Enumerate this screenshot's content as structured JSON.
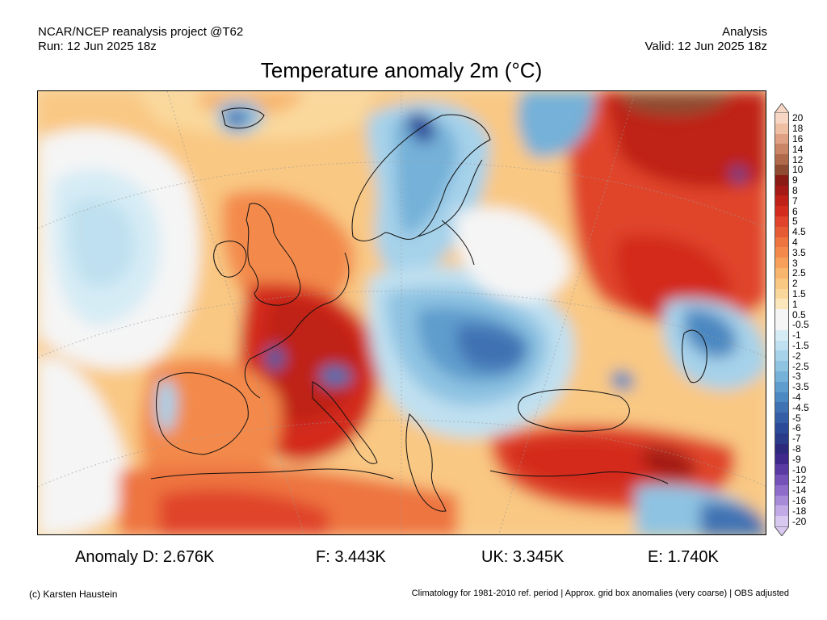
{
  "header": {
    "project": "NCAR/NCEP reanalysis project @T62",
    "run": "Run: 12 Jun 2025 18z",
    "mode": "Analysis",
    "valid": "Valid: 12 Jun 2025 18z"
  },
  "title": "Temperature anomaly 2m (°C)",
  "legend": {
    "levels": [
      {
        "label": "20",
        "color": "#f7d7c4"
      },
      {
        "label": "18",
        "color": "#efbfa3"
      },
      {
        "label": "16",
        "color": "#dfa083"
      },
      {
        "label": "14",
        "color": "#c98565"
      },
      {
        "label": "12",
        "color": "#b06a4b"
      },
      {
        "label": "10",
        "color": "#8e4b32"
      },
      {
        "label": "9",
        "color": "#8a1a14"
      },
      {
        "label": "8",
        "color": "#a51a16"
      },
      {
        "label": "7",
        "color": "#bf2118"
      },
      {
        "label": "6",
        "color": "#d32b1e"
      },
      {
        "label": "5",
        "color": "#e0442a"
      },
      {
        "label": "4.5",
        "color": "#e75b34"
      },
      {
        "label": "4",
        "color": "#ee7440"
      },
      {
        "label": "3.5",
        "color": "#f38a4c"
      },
      {
        "label": "3",
        "color": "#f6a05c"
      },
      {
        "label": "2.5",
        "color": "#f8b56d"
      },
      {
        "label": "2",
        "color": "#f9c883"
      },
      {
        "label": "1.5",
        "color": "#fad89c"
      },
      {
        "label": "1",
        "color": "#fbe7bb"
      },
      {
        "label": "0.5",
        "color": "#f5f5f5"
      },
      {
        "label": "-0.5",
        "color": "#f5f5f5"
      },
      {
        "label": "-1",
        "color": "#d6ecf5"
      },
      {
        "label": "-1.5",
        "color": "#bfe0f0"
      },
      {
        "label": "-2",
        "color": "#a6d2ea"
      },
      {
        "label": "-2.5",
        "color": "#8ec3e2"
      },
      {
        "label": "-3",
        "color": "#75b1d8"
      },
      {
        "label": "-3.5",
        "color": "#5e9dcd"
      },
      {
        "label": "-4",
        "color": "#4c88c1"
      },
      {
        "label": "-4.5",
        "color": "#3f72b3"
      },
      {
        "label": "-5",
        "color": "#345ea6"
      },
      {
        "label": "-6",
        "color": "#2b4a98"
      },
      {
        "label": "-7",
        "color": "#2a3b8a"
      },
      {
        "label": "-8",
        "color": "#2d2a7d"
      },
      {
        "label": "-9",
        "color": "#3f2a8c"
      },
      {
        "label": "-10",
        "color": "#5a3aa3"
      },
      {
        "label": "-12",
        "color": "#7452b7"
      },
      {
        "label": "-14",
        "color": "#8d6dc9"
      },
      {
        "label": "-16",
        "color": "#a78bd8"
      },
      {
        "label": "-18",
        "color": "#c1aae6"
      },
      {
        "label": "-20",
        "color": "#d9c9f1"
      }
    ]
  },
  "stats": [
    {
      "text": "Anomaly D: 2.676K"
    },
    {
      "text": "F: 3.443K"
    },
    {
      "text": "UK: 3.345K"
    },
    {
      "text": "E: 1.740K"
    }
  ],
  "footer": {
    "credit": "(c) Karsten Haustein",
    "note": "Climatology for 1981-2010 ref. period | Approx. grid box anomalies (very coarse) | OBS adjusted"
  }
}
